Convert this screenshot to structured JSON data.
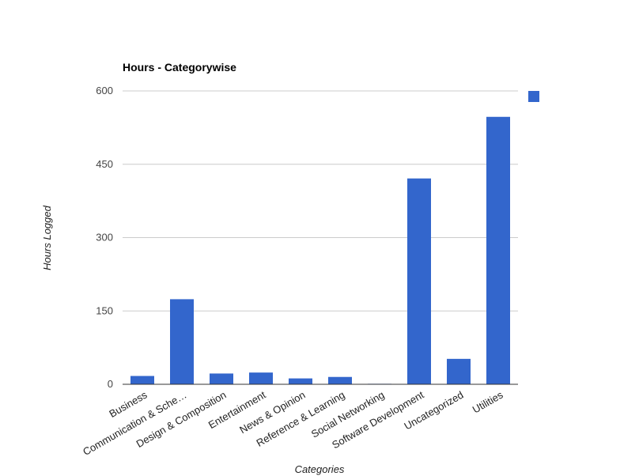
{
  "chart_data": {
    "type": "bar",
    "title": "Hours - Categorywise",
    "xlabel": "Categories",
    "ylabel": "Hours Logged",
    "categories": [
      "Business",
      "Communication & Sche…",
      "Design & Composition",
      "Entertainment",
      "News & Opinion",
      "Reference & Learning",
      "Social Networking",
      "Software Development",
      "Uncategorized",
      "Utilities"
    ],
    "series": [
      {
        "values": [
          17,
          174,
          22,
          24,
          12,
          15,
          1,
          421,
          52,
          547
        ]
      }
    ],
    "ylim": [
      0,
      600
    ],
    "yticks": [
      0,
      150,
      300,
      450,
      600
    ],
    "grid": true,
    "legend": "top-right",
    "colors": {
      "bar": "#3366cc"
    }
  }
}
